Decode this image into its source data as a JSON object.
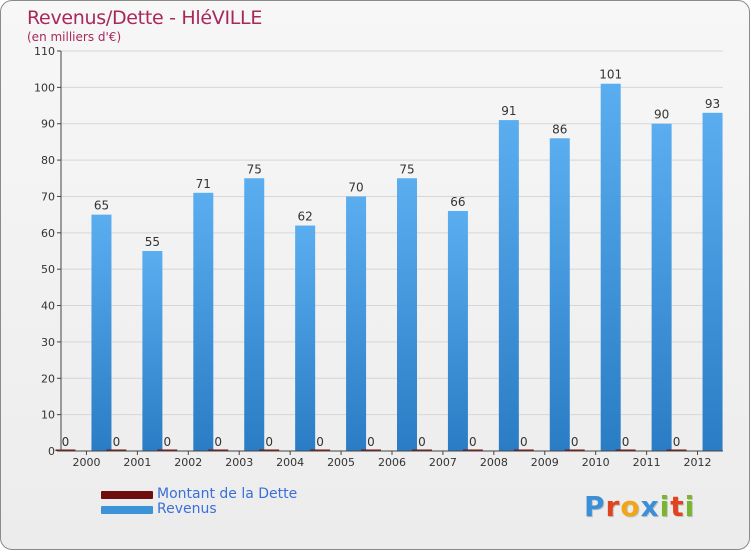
{
  "header": {
    "title": "Revenus/Dette - HléVILLE",
    "subtitle": "(en milliers d'€)"
  },
  "colors": {
    "revenus": "#3c93d8",
    "dette": "#7a1010",
    "title": "#a8285a"
  },
  "chart_data": {
    "type": "bar",
    "title": "Revenus/Dette - HléVILLE",
    "ylabel": "(en milliers d'€)",
    "xlabel": "",
    "ylim": [
      0,
      110
    ],
    "yticks": [
      0,
      10,
      20,
      30,
      40,
      50,
      60,
      70,
      80,
      90,
      100,
      110
    ],
    "categories": [
      "2000",
      "2001",
      "2002",
      "2003",
      "2004",
      "2005",
      "2006",
      "2007",
      "2008",
      "2009",
      "2010",
      "2011",
      "2012"
    ],
    "series": [
      {
        "name": "Montant de la Dette",
        "values": [
          0,
          0,
          0,
          0,
          0,
          0,
          0,
          0,
          0,
          0,
          0,
          0,
          0
        ]
      },
      {
        "name": "Revenus",
        "values": [
          65,
          55,
          71,
          75,
          62,
          70,
          75,
          66,
          91,
          86,
          101,
          90,
          93
        ]
      }
    ],
    "legend": "bottom-left"
  },
  "legend": {
    "items": [
      {
        "label": "Montant de la Dette"
      },
      {
        "label": "Revenus"
      }
    ]
  },
  "brand": {
    "text": "Proxiti"
  }
}
